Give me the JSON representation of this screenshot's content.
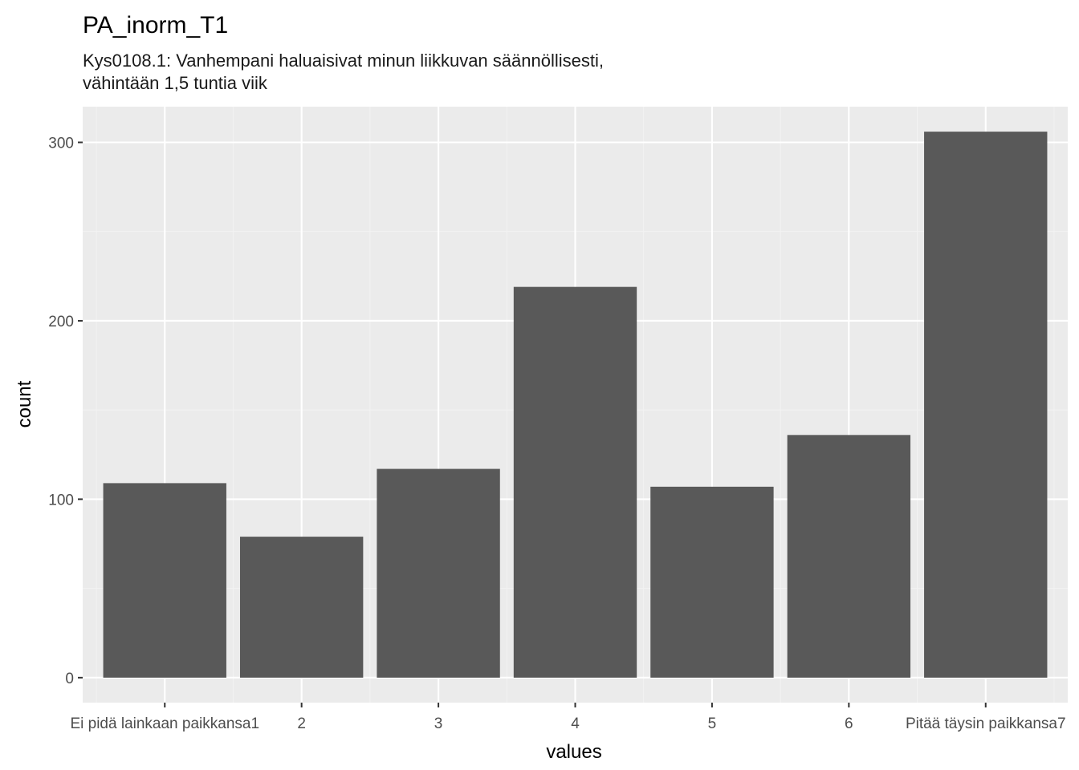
{
  "chart_data": {
    "type": "bar",
    "title": "PA_inorm_T1",
    "subtitle_lines": [
      "Kys0108.1: Vanhempani haluaisivat minun liikkuvan säännöllisesti,",
      "vähintään 1,5 tuntia viik"
    ],
    "xlabel": "values",
    "ylabel": "count",
    "categories": [
      "Ei pidä lainkaan paikkansa1",
      "2",
      "3",
      "4",
      "5",
      "6",
      "Pitää täysin paikkansa7"
    ],
    "values": [
      109,
      79,
      117,
      219,
      107,
      136,
      306
    ],
    "ylim": [
      -14,
      320
    ],
    "yticks": [
      0,
      100,
      200,
      300
    ],
    "grid": true,
    "legend": "none",
    "colors": {
      "bar": "#595959",
      "panel_background": "#ebebeb",
      "grid_major": "#ffffff",
      "grid_minor": "#f2f2f2"
    }
  }
}
